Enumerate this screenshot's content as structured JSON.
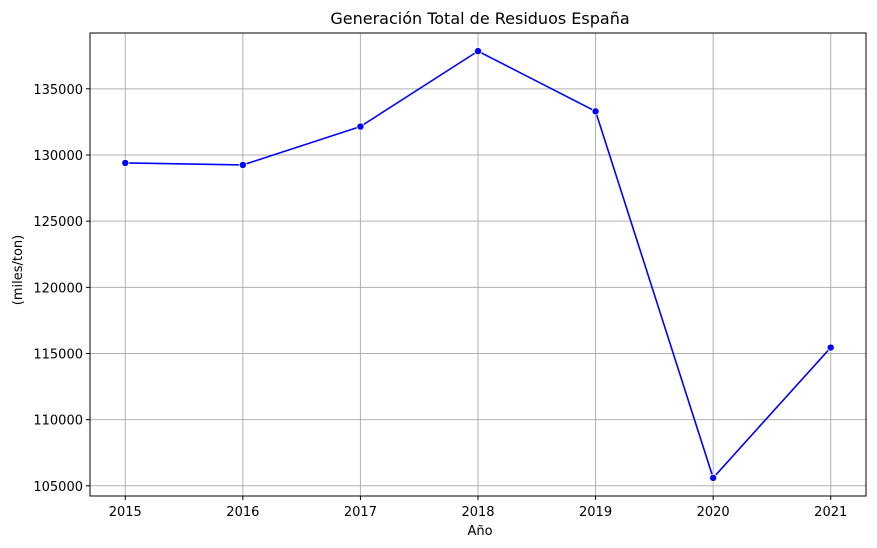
{
  "chart_data": {
    "type": "line",
    "title": "Generación Total de Residuos España",
    "xlabel": "Año",
    "ylabel": "(miles/ton)",
    "x": [
      2015,
      2016,
      2017,
      2018,
      2019,
      2020,
      2021
    ],
    "series": [
      {
        "values": [
          129400,
          129250,
          132150,
          137850,
          133300,
          105600,
          115450
        ]
      }
    ],
    "xlim": [
      2014.7,
      2021.3
    ],
    "ylim": [
      104230,
      139220
    ],
    "x_ticks": [
      "2015",
      "2016",
      "2017",
      "2018",
      "2019",
      "2020",
      "2021"
    ],
    "y_ticks": [
      105000,
      110000,
      115000,
      120000,
      125000,
      130000,
      135000
    ],
    "y_tick_labels": [
      "105000",
      "110000",
      "115000",
      "120000",
      "125000",
      "130000",
      "135000"
    ],
    "grid": true,
    "line_color": "#0000ff",
    "marker_color": "#0000ff",
    "grid_color": "#b0b0b0"
  }
}
